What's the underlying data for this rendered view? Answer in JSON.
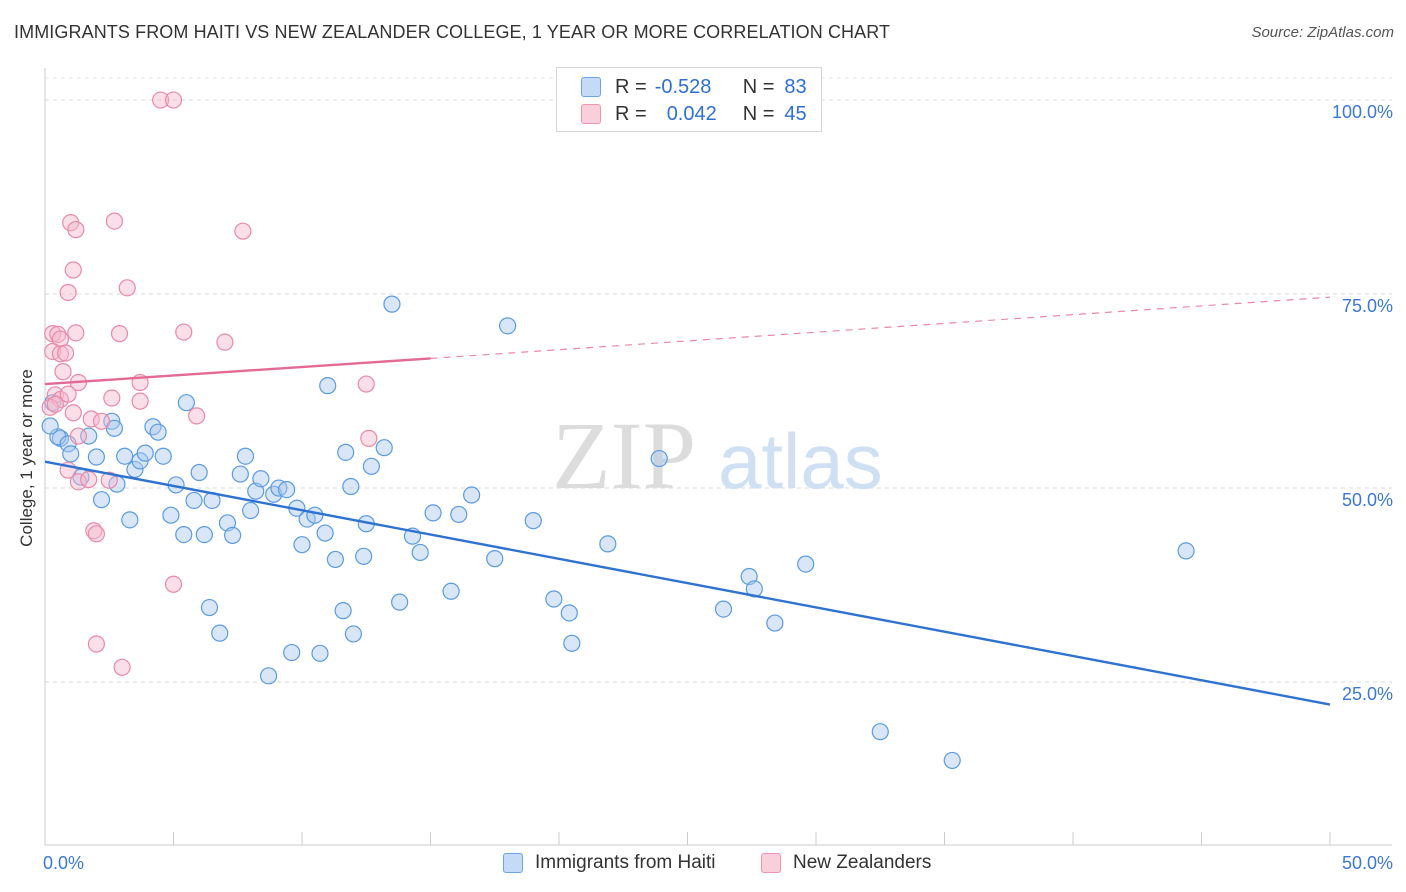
{
  "header": {
    "title": "IMMIGRANTS FROM HAITI VS NEW ZEALANDER COLLEGE, 1 YEAR OR MORE CORRELATION CHART",
    "source": "Source: ZipAtlas.com"
  },
  "watermark": {
    "zip": "ZIP",
    "atlas": "atlas"
  },
  "legend": {
    "rows": [
      {
        "r_label": "R =",
        "r_value": "-0.528",
        "n_label": "N =",
        "n_value": "83",
        "color": "#a8c8f0"
      },
      {
        "r_label": "R =",
        "r_value": "0.042",
        "n_label": "N =",
        "n_value": "45",
        "color": "#f5b8cb"
      }
    ]
  },
  "bottom_legend": {
    "items": [
      {
        "label": "Immigrants from Haiti",
        "color": "#a8c8f0"
      },
      {
        "label": "New Zealanders",
        "color": "#f5b8cb"
      }
    ]
  },
  "chart_data": {
    "type": "scatter",
    "title": "IMMIGRANTS FROM HAITI VS NEW ZEALANDER COLLEGE, 1 YEAR OR MORE CORRELATION CHART",
    "xlabel": "",
    "ylabel": "College, 1 year or more",
    "xlim": [
      0,
      50
    ],
    "ylim": [
      4,
      104
    ],
    "x_tick_labels": [
      "0.0%",
      "50.0%"
    ],
    "y_tick_values": [
      25,
      50,
      75,
      100
    ],
    "y_tick_labels": [
      "25.0%",
      "50.0%",
      "75.0%",
      "100.0%"
    ],
    "grid": "horizontal dashed",
    "legend_position": "top-center",
    "series": [
      {
        "name": "Immigrants from Haiti",
        "color": "#5b9be0",
        "fill": "#a8c8f0",
        "trend": {
          "x": [
            0,
            50
          ],
          "y": [
            53.4,
            22.1
          ],
          "style": "solid",
          "color": "#2f72d0"
        },
        "points": [
          [
            0.6,
            56.4
          ],
          [
            0.3,
            61.0
          ],
          [
            0.5,
            56.6
          ],
          [
            0.9,
            55.7
          ],
          [
            1.0,
            54.4
          ],
          [
            1.4,
            51.4
          ],
          [
            1.7,
            56.7
          ],
          [
            2.0,
            54.0
          ],
          [
            2.2,
            48.5
          ],
          [
            2.6,
            58.6
          ],
          [
            2.7,
            57.7
          ],
          [
            2.8,
            50.5
          ],
          [
            3.1,
            54.1
          ],
          [
            3.3,
            45.9
          ],
          [
            3.5,
            52.4
          ],
          [
            3.7,
            53.5
          ],
          [
            3.9,
            54.5
          ],
          [
            4.2,
            57.9
          ],
          [
            4.4,
            57.2
          ],
          [
            4.6,
            54.1
          ],
          [
            4.9,
            46.5
          ],
          [
            5.1,
            50.4
          ],
          [
            5.4,
            44.0
          ],
          [
            5.5,
            61.0
          ],
          [
            5.8,
            48.4
          ],
          [
            6.0,
            52.0
          ],
          [
            6.2,
            44.0
          ],
          [
            6.4,
            34.6
          ],
          [
            6.5,
            48.4
          ],
          [
            6.8,
            31.3
          ],
          [
            7.1,
            45.5
          ],
          [
            7.3,
            43.9
          ],
          [
            7.6,
            51.8
          ],
          [
            7.8,
            54.1
          ],
          [
            8.0,
            47.1
          ],
          [
            8.2,
            49.6
          ],
          [
            8.4,
            51.2
          ],
          [
            8.7,
            25.8
          ],
          [
            8.9,
            49.2
          ],
          [
            9.1,
            50.0
          ],
          [
            9.4,
            49.8
          ],
          [
            9.6,
            28.8
          ],
          [
            9.8,
            47.4
          ],
          [
            10.0,
            42.7
          ],
          [
            10.2,
            46.0
          ],
          [
            10.5,
            46.5
          ],
          [
            10.7,
            28.7
          ],
          [
            10.9,
            44.2
          ],
          [
            11.0,
            63.2
          ],
          [
            11.3,
            40.8
          ],
          [
            11.6,
            34.2
          ],
          [
            11.7,
            54.6
          ],
          [
            11.9,
            50.2
          ],
          [
            12.0,
            31.2
          ],
          [
            12.4,
            41.2
          ],
          [
            12.5,
            45.4
          ],
          [
            12.7,
            52.8
          ],
          [
            13.2,
            55.2
          ],
          [
            13.5,
            73.7
          ],
          [
            13.8,
            35.3
          ],
          [
            14.3,
            43.8
          ],
          [
            14.6,
            41.7
          ],
          [
            15.1,
            46.8
          ],
          [
            15.8,
            36.7
          ],
          [
            16.1,
            46.6
          ],
          [
            16.6,
            49.1
          ],
          [
            17.5,
            40.9
          ],
          [
            18.0,
            70.9
          ],
          [
            19.0,
            45.8
          ],
          [
            19.8,
            35.7
          ],
          [
            20.4,
            33.9
          ],
          [
            20.5,
            30.0
          ],
          [
            21.9,
            42.8
          ],
          [
            23.9,
            53.8
          ],
          [
            26.4,
            34.4
          ],
          [
            27.4,
            38.6
          ],
          [
            27.6,
            37.0
          ],
          [
            28.4,
            32.6
          ],
          [
            29.6,
            40.2
          ],
          [
            32.5,
            18.6
          ],
          [
            35.3,
            14.9
          ],
          [
            44.4,
            41.9
          ],
          [
            0.2,
            58.0
          ]
        ]
      },
      {
        "name": "New Zealanders",
        "color": "#e88aa8",
        "fill": "#f5b8cb",
        "trend": {
          "x": [
            0,
            15
          ],
          "y": [
            63.4,
            66.7
          ],
          "style": "solid",
          "color": "#e36a93",
          "extension": {
            "x": [
              15,
              50
            ],
            "y": [
              66.7,
              74.6
            ],
            "style": "dashed"
          }
        },
        "points": [
          [
            4.5,
            100.0
          ],
          [
            5.0,
            100.0
          ],
          [
            1.0,
            84.2
          ],
          [
            1.2,
            83.3
          ],
          [
            2.7,
            84.4
          ],
          [
            7.7,
            83.1
          ],
          [
            1.1,
            78.1
          ],
          [
            0.9,
            75.2
          ],
          [
            3.2,
            75.8
          ],
          [
            0.3,
            69.9
          ],
          [
            0.5,
            69.8
          ],
          [
            0.6,
            69.2
          ],
          [
            1.2,
            70.0
          ],
          [
            2.9,
            69.9
          ],
          [
            5.4,
            70.1
          ],
          [
            7.0,
            68.8
          ],
          [
            0.3,
            67.6
          ],
          [
            0.6,
            67.3
          ],
          [
            0.8,
            67.4
          ],
          [
            0.7,
            65.0
          ],
          [
            1.3,
            63.6
          ],
          [
            3.7,
            63.6
          ],
          [
            12.5,
            63.4
          ],
          [
            0.4,
            62.0
          ],
          [
            0.6,
            61.4
          ],
          [
            0.9,
            62.1
          ],
          [
            2.6,
            61.6
          ],
          [
            3.7,
            61.2
          ],
          [
            1.1,
            59.7
          ],
          [
            1.8,
            58.9
          ],
          [
            2.2,
            58.6
          ],
          [
            5.9,
            59.3
          ],
          [
            1.3,
            56.7
          ],
          [
            12.6,
            56.4
          ],
          [
            0.9,
            52.3
          ],
          [
            1.3,
            50.8
          ],
          [
            1.7,
            51.1
          ],
          [
            2.5,
            51.0
          ],
          [
            1.9,
            44.5
          ],
          [
            2.0,
            44.1
          ],
          [
            5.0,
            37.6
          ],
          [
            2.0,
            29.9
          ],
          [
            3.0,
            26.9
          ],
          [
            0.2,
            60.4
          ],
          [
            0.4,
            60.8
          ]
        ]
      }
    ]
  }
}
